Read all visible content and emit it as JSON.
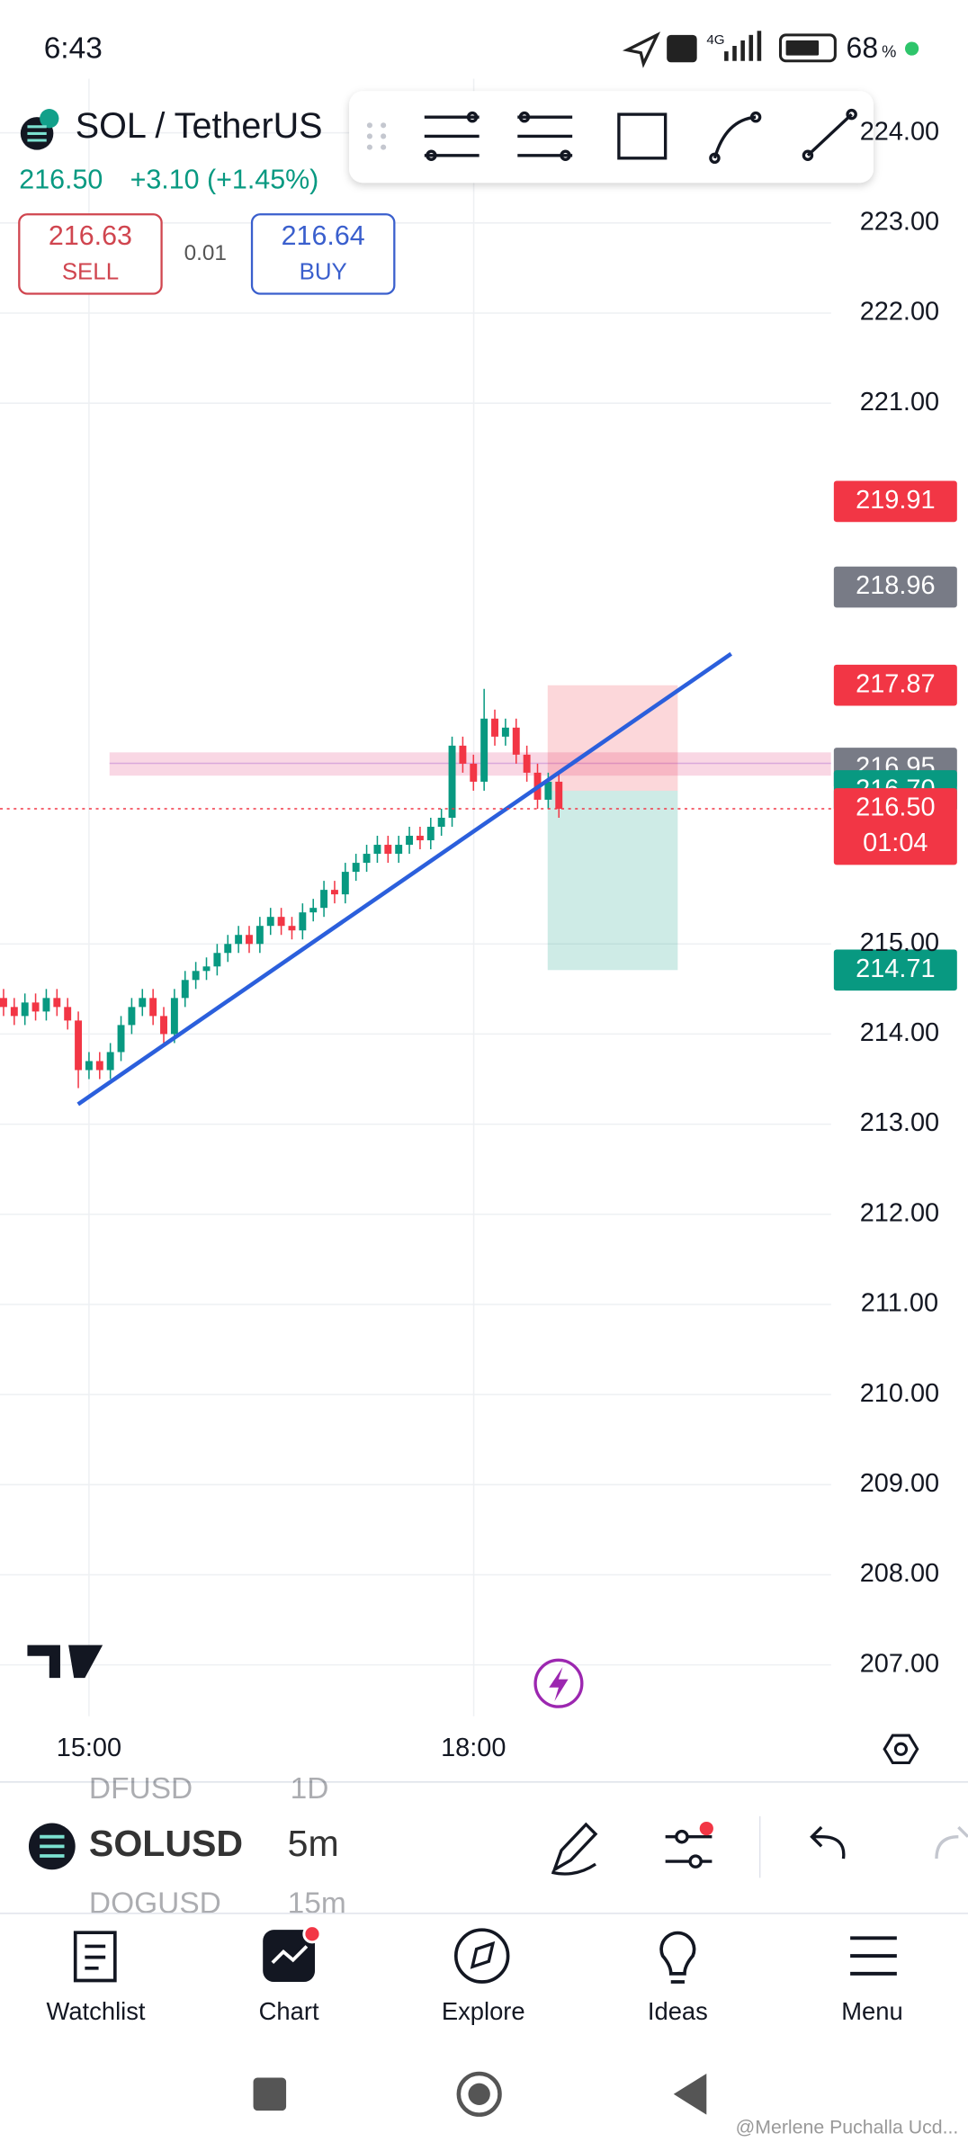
{
  "status_bar": {
    "time": "6:43",
    "network": "4G",
    "battery": "68",
    "battery_unit": "%"
  },
  "header": {
    "symbol": "SOL / TetherUS",
    "last_price": "216.50",
    "change": "+3.10 (+1.45%)",
    "sell_price": "216.63",
    "sell_label": "SELL",
    "spread": "0.01",
    "buy_price": "216.64",
    "buy_label": "BUY"
  },
  "chart_data": {
    "type": "candlestick",
    "x": [
      "14:20",
      "14:25",
      "14:30",
      "14:35",
      "14:40",
      "14:45",
      "14:50",
      "14:55",
      "15:00",
      "15:05",
      "15:10",
      "15:15",
      "15:20",
      "15:25",
      "15:30",
      "15:35",
      "15:40",
      "15:45",
      "15:50",
      "15:55",
      "16:00",
      "16:05",
      "16:10",
      "16:15",
      "16:20",
      "16:25",
      "16:30",
      "16:35",
      "16:40",
      "16:45",
      "16:50",
      "16:55",
      "17:00",
      "17:05",
      "17:10",
      "17:15",
      "17:20",
      "17:25",
      "17:30",
      "17:35",
      "17:40",
      "17:45",
      "17:50",
      "17:55",
      "18:00",
      "18:05",
      "18:10",
      "18:15",
      "18:20",
      "18:25",
      "18:30",
      "18:35",
      "18:40"
    ],
    "open": [
      214.4,
      214.3,
      214.2,
      214.35,
      214.25,
      214.4,
      214.3,
      214.15,
      213.6,
      213.7,
      213.6,
      213.8,
      214.1,
      214.3,
      214.4,
      214.2,
      214.0,
      214.4,
      214.6,
      214.7,
      214.75,
      214.9,
      215.0,
      215.1,
      215.0,
      215.2,
      215.3,
      215.2,
      215.15,
      215.35,
      215.4,
      215.6,
      215.55,
      215.8,
      215.9,
      216.0,
      216.1,
      216.0,
      216.1,
      216.2,
      216.15,
      216.3,
      216.4,
      217.2,
      217.0,
      216.8,
      217.5,
      217.3,
      217.4,
      217.1,
      216.9,
      216.6,
      216.8
    ],
    "high": [
      214.5,
      214.4,
      214.45,
      214.45,
      214.5,
      214.5,
      214.4,
      214.25,
      213.8,
      213.8,
      213.9,
      214.2,
      214.4,
      214.5,
      214.5,
      214.3,
      214.5,
      214.7,
      214.8,
      214.85,
      215.0,
      215.1,
      215.2,
      215.2,
      215.3,
      215.4,
      215.4,
      215.3,
      215.45,
      215.5,
      215.7,
      215.7,
      215.9,
      216.0,
      216.1,
      216.2,
      216.2,
      216.2,
      216.3,
      216.3,
      216.4,
      216.5,
      217.3,
      217.3,
      217.1,
      217.83,
      217.6,
      217.5,
      217.5,
      217.2,
      217.0,
      216.9,
      216.9
    ],
    "low": [
      214.2,
      214.1,
      214.1,
      214.15,
      214.15,
      214.2,
      214.05,
      213.4,
      213.5,
      213.5,
      213.5,
      213.7,
      214.0,
      214.2,
      214.1,
      213.9,
      213.9,
      214.3,
      214.5,
      214.6,
      214.65,
      214.8,
      214.9,
      214.9,
      214.9,
      215.1,
      215.1,
      215.05,
      215.05,
      215.25,
      215.3,
      215.45,
      215.45,
      215.7,
      215.8,
      215.9,
      215.9,
      215.9,
      216.0,
      216.05,
      216.05,
      216.2,
      216.3,
      216.9,
      216.7,
      216.7,
      217.2,
      217.2,
      217.0,
      216.8,
      216.5,
      216.5,
      216.4
    ],
    "close": [
      214.3,
      214.2,
      214.35,
      214.25,
      214.4,
      214.3,
      214.15,
      213.6,
      213.7,
      213.6,
      213.8,
      214.1,
      214.3,
      214.4,
      214.2,
      214.0,
      214.4,
      214.6,
      214.7,
      214.75,
      214.9,
      215.0,
      215.1,
      215.0,
      215.2,
      215.3,
      215.2,
      215.15,
      215.35,
      215.4,
      215.6,
      215.55,
      215.8,
      215.9,
      216.0,
      216.1,
      216.0,
      216.1,
      216.2,
      216.15,
      216.3,
      216.4,
      217.2,
      217.0,
      216.8,
      217.5,
      217.3,
      217.4,
      217.1,
      216.9,
      216.6,
      216.8,
      216.5
    ],
    "up_color": "#089981",
    "down_color": "#f23645",
    "ylim": [
      206.43,
      224.6
    ],
    "yticks": [
      {
        "value": 224,
        "label": "224.00"
      },
      {
        "value": 223,
        "label": "223.00"
      },
      {
        "value": 222,
        "label": "222.00"
      },
      {
        "value": 221,
        "label": "221.00"
      },
      {
        "value": 215,
        "label": "215.00"
      },
      {
        "value": 214,
        "label": "214.00"
      },
      {
        "value": 213,
        "label": "213.00"
      },
      {
        "value": 212,
        "label": "212.00"
      },
      {
        "value": 211,
        "label": "211.00"
      },
      {
        "value": 210,
        "label": "210.00"
      },
      {
        "value": 209,
        "label": "209.00"
      },
      {
        "value": 208,
        "label": "208.00"
      },
      {
        "value": 207,
        "label": "207.00"
      }
    ],
    "xticks": [
      "15:00",
      "18:00"
    ],
    "grid": true,
    "price_labels": [
      {
        "value": 219.91,
        "color": "#f23645"
      },
      {
        "value": 218.96,
        "color": "#787b86"
      },
      {
        "value": 217.87,
        "color": "#f23645"
      },
      {
        "value": 216.95,
        "color": "#787b86"
      },
      {
        "value": 216.7,
        "label": "216.70",
        "color": "#089981"
      },
      {
        "value": 216.5,
        "label": "216.50",
        "color": "#f23645"
      },
      {
        "value": 214.71,
        "color": "#089981"
      }
    ],
    "countdown": "01:04"
  },
  "symbol_bar": {
    "prev_symbol": "DFUSD",
    "prev_interval": "1D",
    "symbol": "SOLUSD",
    "interval": "5m",
    "next_symbol": "DOGUSD",
    "next_interval": "15m"
  },
  "nav": [
    "Watchlist",
    "Chart",
    "Explore",
    "Ideas",
    "Menu"
  ],
  "watermark": "@Merlene Puchalla Ucd..."
}
